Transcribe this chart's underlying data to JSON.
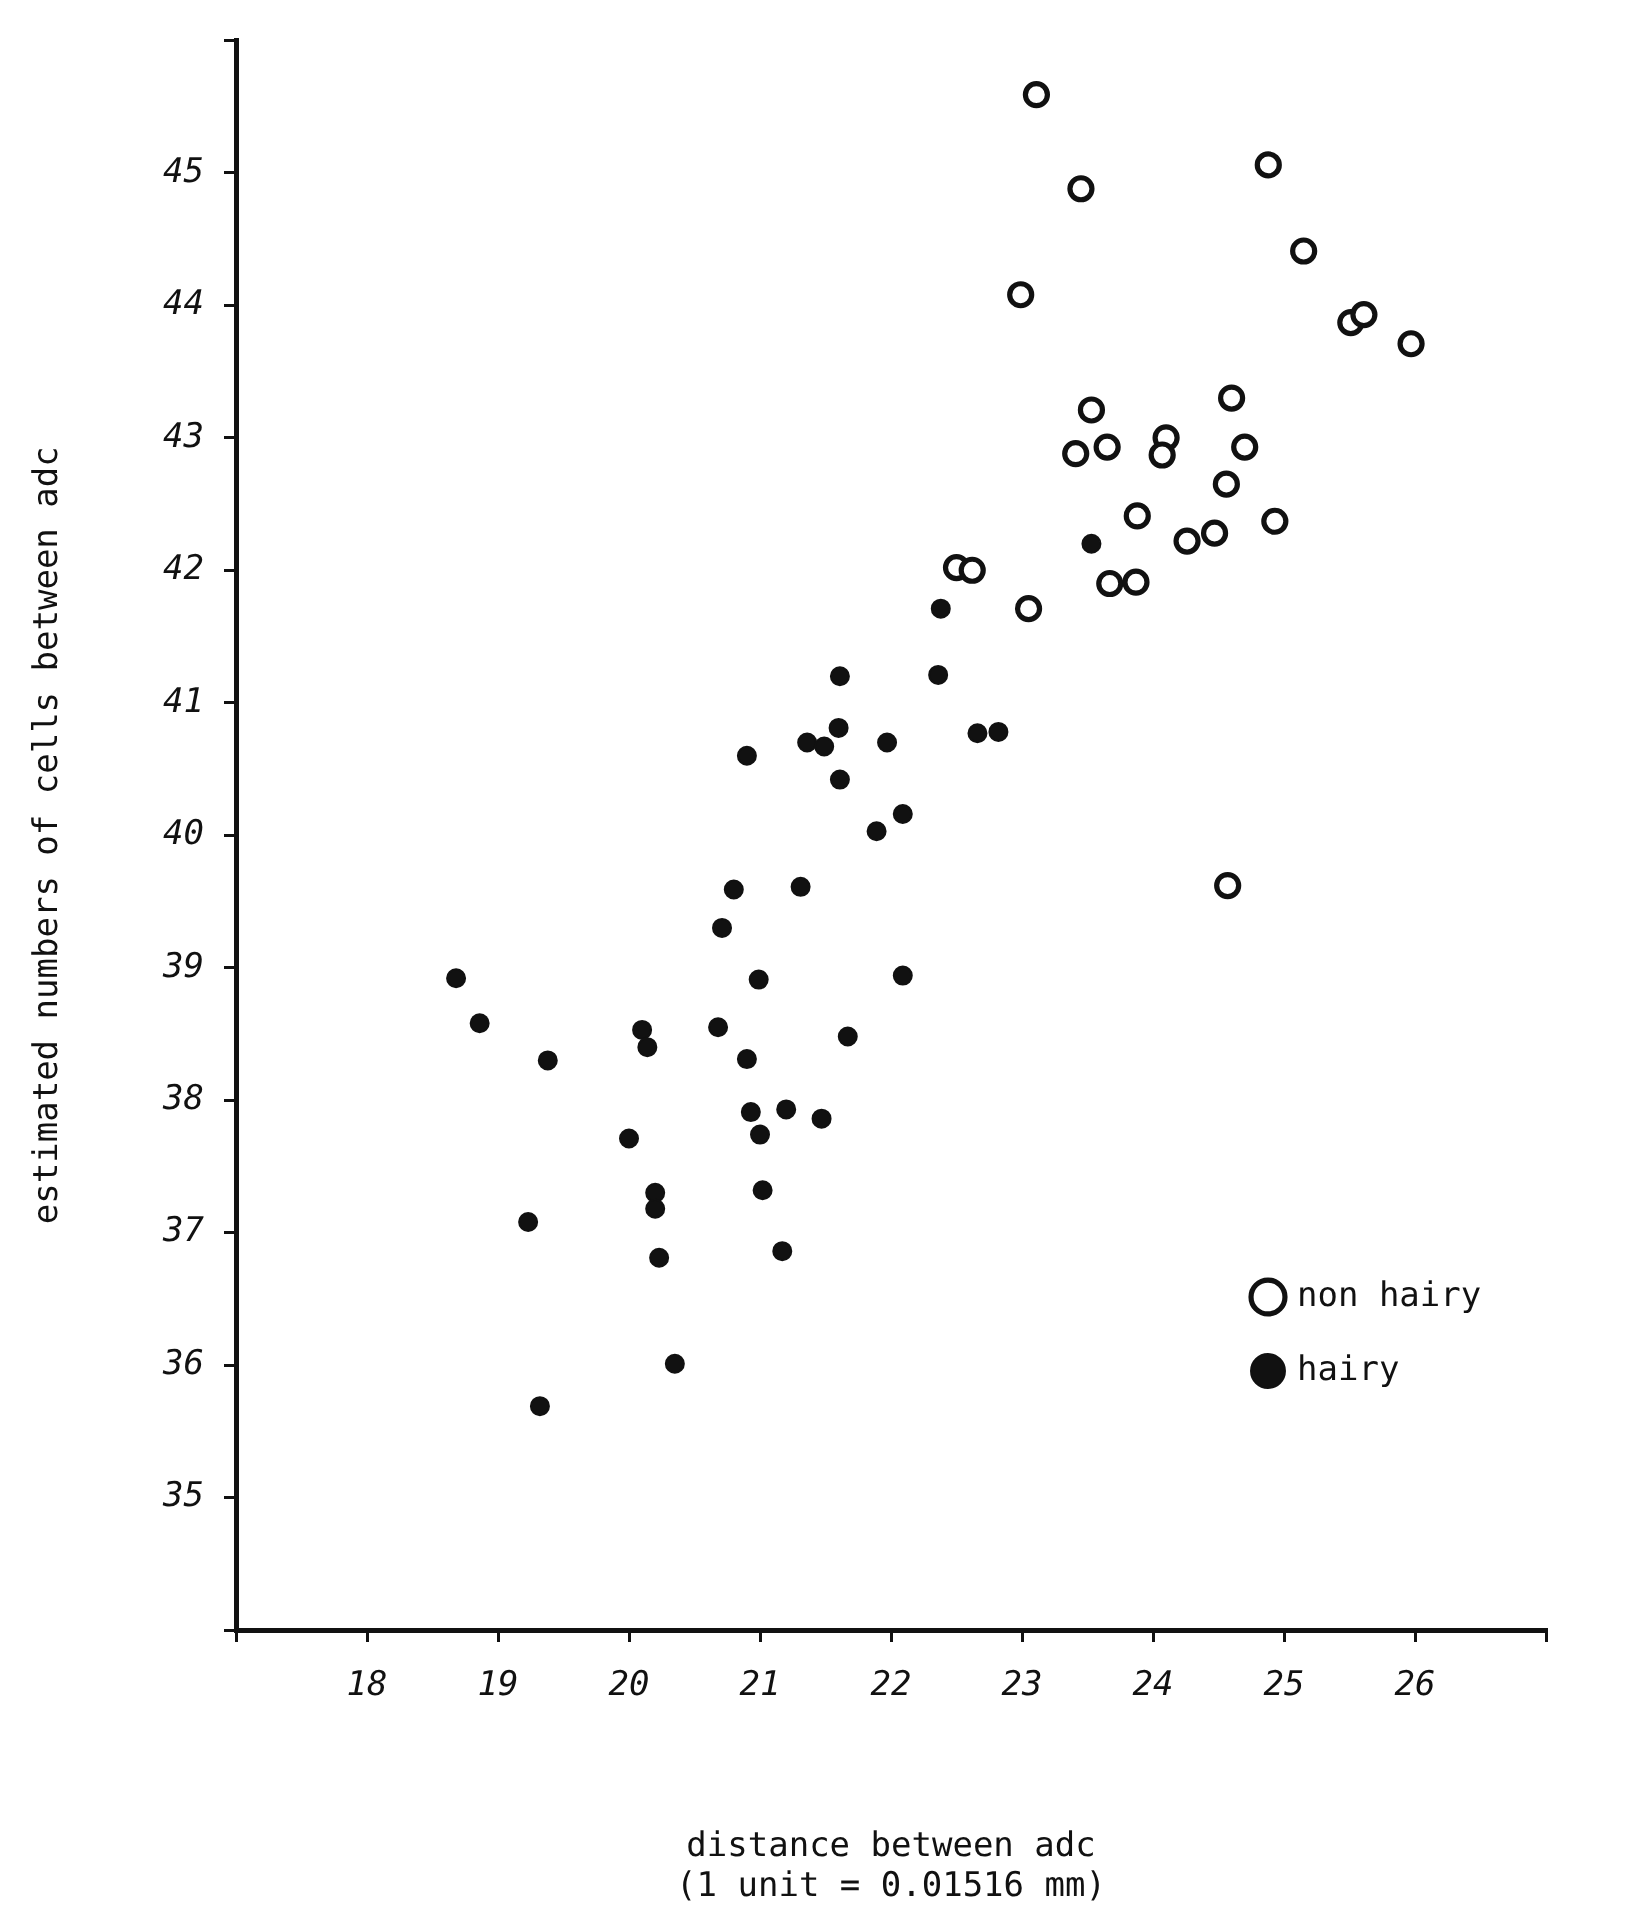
{
  "chart_data": {
    "type": "scatter",
    "xlabel": "distance between adc\n(1 unit = 0.01516 mm)",
    "ylabel": "estimated numbers of cells between adc",
    "xlim": [
      17,
      27
    ],
    "xticks": [
      {
        "value": 17,
        "label": null
      },
      18,
      19,
      20,
      21,
      22,
      23,
      24,
      25,
      26,
      {
        "value": 27,
        "label": null
      }
    ],
    "ylim": [
      34,
      46
    ],
    "yticks": [
      {
        "value": 34,
        "label": null
      },
      35,
      36,
      37,
      38,
      39,
      40,
      41,
      42,
      43,
      44,
      45,
      {
        "value": 46,
        "label": null
      }
    ],
    "grid": false,
    "legend": "bottom right",
    "marker": "circle",
    "series": [
      {
        "name": "non hairy",
        "color": "#111111",
        "x": [
          23.11,
          23.45,
          24.88,
          25.15,
          22.99,
          25.51,
          25.61,
          25.97,
          24.6,
          23.53,
          23.41,
          23.65,
          24.1,
          24.07,
          24.7,
          24.56,
          23.88,
          24.26,
          24.47,
          24.93,
          23.67,
          23.87,
          22.5,
          22.62,
          23.05,
          24.57
        ],
        "values": [
          45.59,
          44.88,
          45.06,
          44.41,
          44.08,
          43.87,
          43.93,
          43.71,
          43.3,
          43.21,
          42.88,
          42.93,
          43.0,
          42.87,
          42.93,
          42.65,
          42.41,
          42.22,
          42.28,
          42.37,
          41.9,
          41.91,
          42.02,
          42.0,
          41.71,
          39.62
        ]
      },
      {
        "name": "hairy",
        "color": "#111111",
        "x": [
          18.68,
          18.86,
          19.38,
          20.1,
          20.14,
          20.68,
          20.71,
          20.8,
          21.31,
          20.99,
          20.9,
          22.09,
          21.67,
          21.61,
          21.89,
          22.09,
          20.93,
          21.2,
          21.47,
          21.0,
          20.0,
          20.2,
          20.2,
          21.02,
          19.23,
          20.23,
          21.17,
          20.35,
          19.32,
          21.61,
          20.9,
          21.36,
          21.49,
          21.6,
          21.97,
          23.53,
          22.38,
          22.36,
          22.66,
          22.82
        ],
        "values": [
          38.92,
          38.58,
          38.3,
          38.53,
          38.4,
          38.55,
          39.3,
          39.59,
          39.61,
          38.91,
          38.31,
          38.94,
          38.48,
          40.42,
          40.03,
          40.16,
          37.91,
          37.93,
          37.86,
          37.74,
          37.71,
          37.3,
          37.18,
          37.32,
          37.08,
          36.81,
          36.86,
          36.01,
          35.69,
          41.2,
          40.6,
          40.7,
          40.67,
          40.81,
          40.7,
          42.2,
          41.71,
          41.21,
          40.77,
          40.78
        ]
      }
    ]
  }
}
